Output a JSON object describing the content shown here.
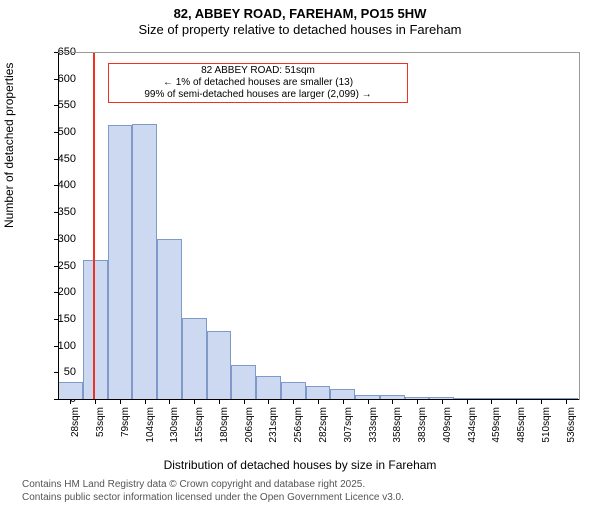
{
  "title_line1": "82, ABBEY ROAD, FAREHAM, PO15 5HW",
  "title_line2": "Size of property relative to detached houses in Fareham",
  "chart": {
    "type": "histogram",
    "ylabel": "Number of detached properties",
    "xlabel": "Distribution of detached houses by size in Fareham",
    "ylim": [
      0,
      650
    ],
    "ytick_step": 50,
    "yticks": [
      0,
      50,
      100,
      150,
      200,
      250,
      300,
      350,
      400,
      450,
      500,
      550,
      600,
      650
    ],
    "xtick_labels": [
      "28sqm",
      "53sqm",
      "79sqm",
      "104sqm",
      "130sqm",
      "155sqm",
      "180sqm",
      "206sqm",
      "231sqm",
      "256sqm",
      "282sqm",
      "307sqm",
      "333sqm",
      "358sqm",
      "383sqm",
      "409sqm",
      "434sqm",
      "459sqm",
      "485sqm",
      "510sqm",
      "536sqm"
    ],
    "bar_values": [
      33,
      262,
      516,
      517,
      302,
      153,
      130,
      65,
      45,
      33,
      27,
      20,
      10,
      10,
      5,
      5,
      3,
      3,
      2,
      2,
      2
    ],
    "bar_fill": "#ccd9f1",
    "bar_stroke": "#7f99c8",
    "bar_width_ratio": 1.0,
    "background_color": "#ffffff",
    "axis_color": "#000000",
    "plot_border_color": "#999999",
    "reference_line": {
      "x_value_sqm": 51,
      "color": "#ee3322"
    },
    "annotation": {
      "border_color": "#ee3322",
      "bg_color": "#ffffff",
      "line1": "82 ABBEY ROAD: 51sqm",
      "line2": "← 1% of detached houses are smaller (13)",
      "line3": "99% of semi-detached houses are larger (2,099) →"
    }
  },
  "footer_line1": "Contains HM Land Registry data © Crown copyright and database right 2025.",
  "footer_line2": "Contains public sector information licensed under the Open Government Licence v3.0."
}
